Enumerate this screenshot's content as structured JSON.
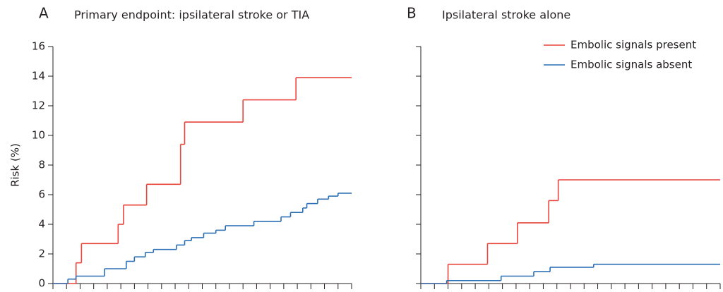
{
  "chart_data": [
    {
      "type": "step",
      "panel_label": "A",
      "title": "Primary endpoint: ipsilateral stroke or TIA",
      "y_label": "Risk (%)",
      "xlim": [
        0,
        22
      ],
      "xticks": [
        0,
        1,
        2,
        3,
        4,
        5,
        6,
        7,
        8,
        9,
        10,
        11,
        12,
        13,
        14,
        15,
        16,
        17,
        18,
        19,
        20,
        21,
        22
      ],
      "ylim": [
        0,
        16
      ],
      "yticks": [
        0,
        2,
        4,
        6,
        8,
        10,
        12,
        14,
        16
      ],
      "show_ytick_labels": true,
      "series": [
        {
          "name": "Embolic signals present",
          "color": "#e8453c",
          "x": [
            0,
            1.7,
            2.1,
            4.8,
            5.2,
            6.9,
            9.4,
            9.7,
            14,
            17.9,
            22
          ],
          "values": [
            0,
            1.4,
            2.7,
            4.0,
            5.3,
            6.7,
            9.4,
            10.9,
            12.4,
            13.9,
            13.9
          ]
        },
        {
          "name": "Embolic signals absent",
          "color": "#2a6fb5",
          "x": [
            0,
            1.1,
            1.7,
            3.8,
            5.4,
            6,
            6.8,
            7.4,
            9.1,
            9.7,
            10.2,
            11.1,
            12,
            12.7,
            14.8,
            16.8,
            17.5,
            18.4,
            18.7,
            19.5,
            20.3,
            21,
            22
          ],
          "values": [
            0,
            0.3,
            0.5,
            1.0,
            1.5,
            1.8,
            2.1,
            2.3,
            2.6,
            2.9,
            3.1,
            3.4,
            3.6,
            3.9,
            4.2,
            4.5,
            4.8,
            5.1,
            5.4,
            5.7,
            5.9,
            6.1,
            6.1
          ]
        }
      ]
    },
    {
      "type": "step",
      "panel_label": "B",
      "title": "Ipsilateral stroke alone",
      "legend": "top-right",
      "xlim": [
        0,
        22
      ],
      "xticks": [
        0,
        1,
        2,
        3,
        4,
        5,
        6,
        7,
        8,
        9,
        10,
        11,
        12,
        13,
        14,
        15,
        16,
        17,
        18,
        19,
        20,
        21,
        22
      ],
      "ylim": [
        0,
        16
      ],
      "yticks": [
        0,
        2,
        4,
        6,
        8,
        10,
        12,
        14,
        16
      ],
      "show_ytick_labels": false,
      "series": [
        {
          "name": "Embolic signals present",
          "color": "#e8453c",
          "x": [
            0,
            2,
            4.9,
            7.1,
            9.4,
            10.1,
            22
          ],
          "values": [
            0,
            1.3,
            2.7,
            4.1,
            5.6,
            7.0,
            7.0
          ]
        },
        {
          "name": "Embolic signals absent",
          "color": "#2a6fb5",
          "x": [
            0,
            1.9,
            5.9,
            8.3,
            9.5,
            12.7,
            22
          ],
          "values": [
            0,
            0.2,
            0.5,
            0.8,
            1.1,
            1.3,
            1.3
          ]
        }
      ]
    }
  ]
}
